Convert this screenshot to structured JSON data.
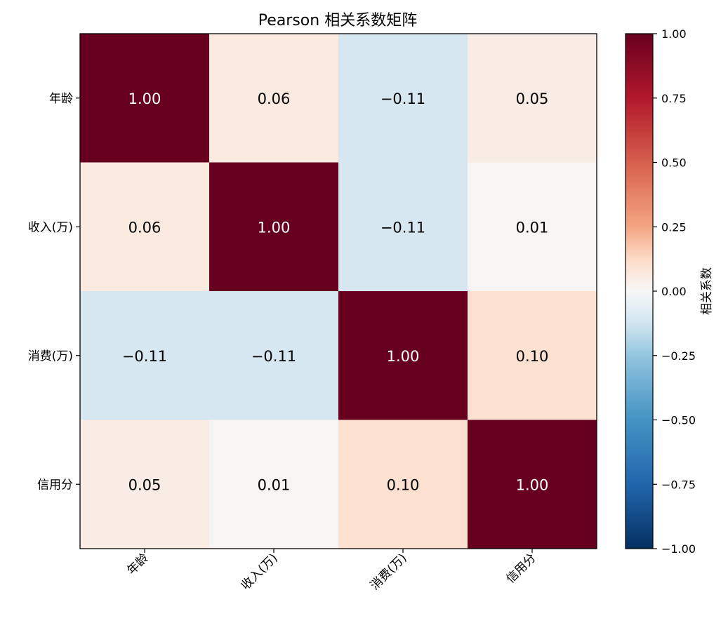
{
  "chart_data": {
    "type": "heatmap",
    "title": "Pearson 相关系数矩阵",
    "x_labels": [
      "年龄",
      "收入(万)",
      "消费(万)",
      "信用分"
    ],
    "y_labels": [
      "年龄",
      "收入(万)",
      "消费(万)",
      "信用分"
    ],
    "values": [
      [
        1.0,
        0.06,
        -0.11,
        0.05
      ],
      [
        0.06,
        1.0,
        -0.11,
        0.01
      ],
      [
        -0.11,
        -0.11,
        1.0,
        0.1
      ],
      [
        0.05,
        0.01,
        0.1,
        1.0
      ]
    ],
    "cell_labels": [
      [
        "1.00",
        "0.06",
        "−0.11",
        "0.05"
      ],
      [
        "0.06",
        "1.00",
        "−0.11",
        "0.01"
      ],
      [
        "−0.11",
        "−0.11",
        "1.00",
        "0.10"
      ],
      [
        "0.05",
        "0.01",
        "0.10",
        "1.00"
      ]
    ],
    "colorbar": {
      "label": "相关系数",
      "range": [
        -1.0,
        1.0
      ],
      "ticks": [
        1.0,
        0.75,
        0.5,
        0.25,
        0.0,
        -0.25,
        -0.5,
        -0.75,
        -1.0
      ],
      "tick_labels": [
        "1.00",
        "0.75",
        "0.50",
        "0.25",
        "0.00",
        "−0.25",
        "−0.50",
        "−0.75",
        "−1.00"
      ],
      "colormap": "RdBu_r",
      "stops": [
        {
          "v": -1.0,
          "color": "#053061"
        },
        {
          "v": -0.75,
          "color": "#2166ac"
        },
        {
          "v": -0.5,
          "color": "#4393c3"
        },
        {
          "v": -0.25,
          "color": "#92c5de"
        },
        {
          "v": -0.125,
          "color": "#d1e5f0"
        },
        {
          "v": 0.0,
          "color": "#f7f7f7"
        },
        {
          "v": 0.125,
          "color": "#fddbc7"
        },
        {
          "v": 0.25,
          "color": "#f4a582"
        },
        {
          "v": 0.5,
          "color": "#d6604d"
        },
        {
          "v": 0.75,
          "color": "#b2182b"
        },
        {
          "v": 1.0,
          "color": "#67001f"
        }
      ]
    },
    "grid": false
  }
}
